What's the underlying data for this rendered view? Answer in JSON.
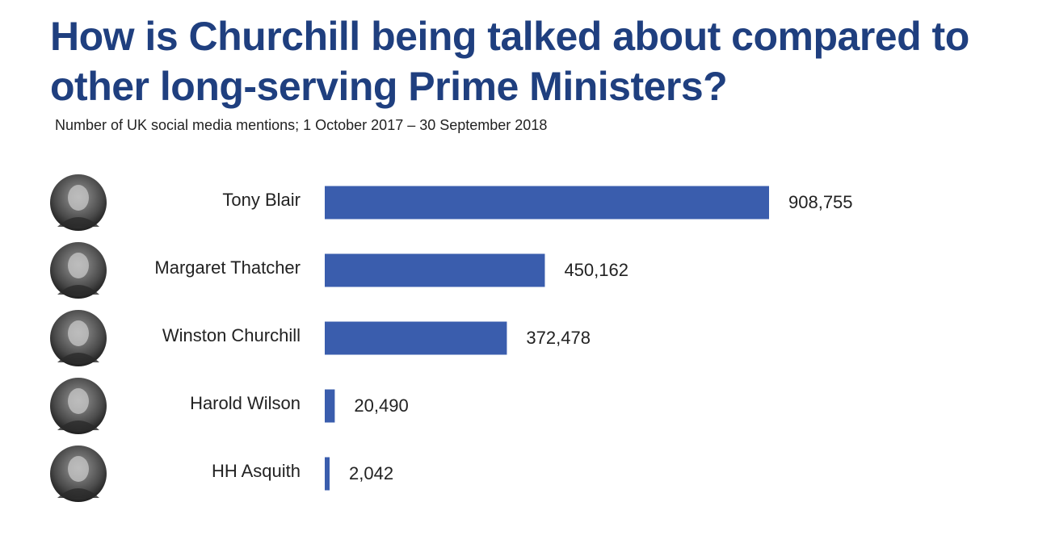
{
  "chart_data": {
    "type": "bar",
    "orientation": "horizontal",
    "title": "How is Churchill being talked about compared to other long-serving Prime Ministers?",
    "subtitle": "Number of UK social media mentions; 1 October 2017 – 30 September 2018",
    "categories": [
      "Tony Blair",
      "Margaret Thatcher",
      "Winston Churchill",
      "Harold Wilson",
      "HH Asquith"
    ],
    "values": [
      908755,
      450162,
      372478,
      20490,
      2042
    ],
    "value_labels": [
      "908,755",
      "450,162",
      "372,478",
      "20,490",
      "2,042"
    ],
    "bar_color": "#3a5dad",
    "grid": false,
    "legend": "none",
    "category_icons": [
      "portrait-icon",
      "portrait-icon",
      "portrait-icon",
      "portrait-icon",
      "portrait-icon"
    ]
  }
}
